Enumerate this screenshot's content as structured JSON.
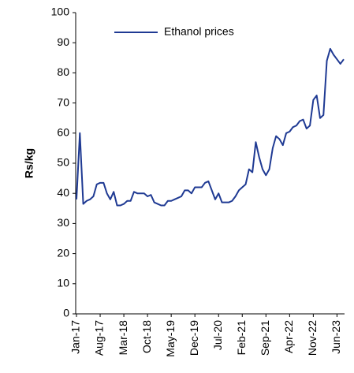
{
  "chart_data": {
    "type": "line",
    "ylabel": "Rs/kg",
    "categories": [
      "Jan-17",
      null,
      null,
      null,
      null,
      null,
      null,
      "Aug-17",
      null,
      null,
      null,
      null,
      null,
      null,
      "Mar-18",
      null,
      null,
      null,
      null,
      null,
      null,
      "Oct-18",
      null,
      null,
      null,
      null,
      null,
      null,
      "May-19",
      null,
      null,
      null,
      null,
      null,
      null,
      "Dec-19",
      null,
      null,
      null,
      null,
      null,
      null,
      "Jul-20",
      null,
      null,
      null,
      null,
      null,
      null,
      "Feb-21",
      null,
      null,
      null,
      null,
      null,
      null,
      "Sep-21",
      null,
      null,
      null,
      null,
      null,
      null,
      "Apr-22",
      null,
      null,
      null,
      null,
      null,
      null,
      "Nov-22",
      null,
      null,
      null,
      null,
      null,
      null,
      "Jun-23",
      null,
      null
    ],
    "series": [
      {
        "name": "Ethanol prices",
        "color": "#1f3a93",
        "values": [
          38,
          60,
          36.5,
          37.5,
          38,
          39,
          43,
          43.5,
          43.5,
          40,
          38,
          40.5,
          36,
          36,
          36.5,
          37.5,
          37.5,
          40.5,
          40,
          40,
          40,
          39,
          39.5,
          37,
          36.5,
          36,
          36,
          37.5,
          37.5,
          38,
          38.5,
          39,
          41,
          41,
          40,
          42,
          42,
          42,
          43.5,
          44,
          41,
          38,
          40,
          37,
          37,
          37,
          37.5,
          39,
          41,
          42,
          43,
          48,
          47,
          57,
          52,
          48,
          46,
          48,
          55,
          59,
          58,
          56,
          60,
          60.5,
          62,
          62.5,
          64,
          64.5,
          61.5,
          62.5,
          71,
          72.5,
          65,
          66,
          84,
          88,
          86,
          84.5,
          83,
          84.5
        ]
      }
    ],
    "ylim": [
      0,
      100
    ],
    "yticks": [
      0,
      10,
      20,
      30,
      40,
      50,
      60,
      70,
      80,
      90,
      100
    ],
    "legend": "top"
  }
}
